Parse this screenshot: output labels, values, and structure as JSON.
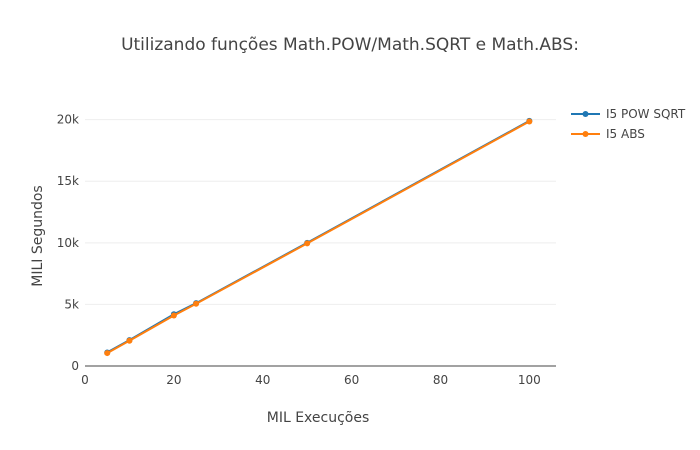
{
  "chart_data": {
    "type": "line",
    "title": "Utilizando funções Math.POW/Math.SQRT e Math.ABS:",
    "xlabel": "MIL Execuções",
    "ylabel": "MILI Segundos",
    "xlim": [
      0,
      106
    ],
    "ylim": [
      0,
      22000
    ],
    "x_ticks": [
      0,
      20,
      40,
      60,
      80,
      100
    ],
    "y_ticks": [
      0,
      5000,
      10000,
      15000,
      20000
    ],
    "y_tick_labels": [
      "0",
      "5k",
      "10k",
      "15k",
      "20k"
    ],
    "grid": true,
    "legend_position": "top-right",
    "series": [
      {
        "name": "I5 POW SQRT",
        "color": "#1f77b4",
        "x": [
          5,
          10,
          20,
          25,
          50,
          100
        ],
        "y": [
          1100,
          2100,
          4200,
          5100,
          10000,
          19900
        ]
      },
      {
        "name": "I5 ABS",
        "color": "#ff7f0e",
        "x": [
          5,
          10,
          20,
          25,
          50,
          100
        ],
        "y": [
          1050,
          2050,
          4100,
          5050,
          9950,
          19850
        ]
      }
    ]
  }
}
